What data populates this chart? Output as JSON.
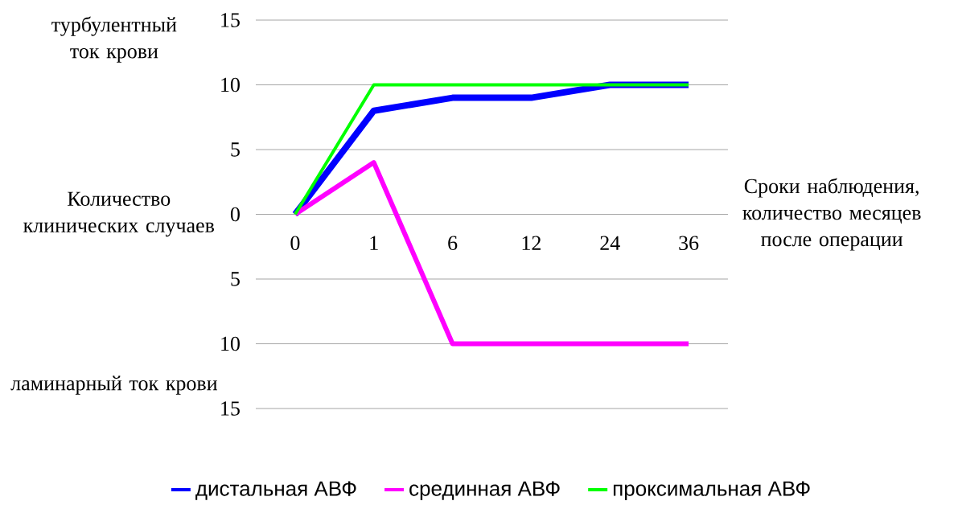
{
  "chart_data": {
    "type": "line",
    "ylabel": "Количество клинических случаев",
    "xlabel": "Сроки наблюдения, количество месяцев после операции",
    "annotations": [
      "турбулентный ток крови",
      "ламинарный ток крови"
    ],
    "categories": [
      "0",
      "1",
      "6",
      "12",
      "24",
      "36"
    ],
    "series": [
      {
        "name": "дистальная АВФ",
        "color": "#0000ff",
        "values": [
          0,
          8,
          9,
          9,
          10,
          10
        ]
      },
      {
        "name": "срединная АВФ",
        "color": "#ff00ff",
        "values": [
          0,
          4,
          -10,
          -10,
          -10,
          -10
        ]
      },
      {
        "name": "проксимальная АВФ",
        "color": "#00ff00",
        "values": [
          0,
          10,
          10,
          10,
          10,
          10
        ]
      }
    ],
    "ylim": [
      -15,
      15
    ],
    "yticks": [
      {
        "value": -15,
        "label": "15"
      },
      {
        "value": -10,
        "label": "10"
      },
      {
        "value": -5,
        "label": "5"
      },
      0,
      5,
      10,
      15
    ],
    "grid": "y",
    "legend": "bottom",
    "marker": "none",
    "line_style": "solid"
  }
}
